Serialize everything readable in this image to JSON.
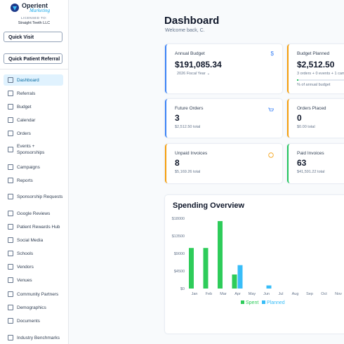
{
  "sidebar": {
    "brand": "Operient",
    "brand_tagline": "Marketing",
    "licensed_label": "LICENSED TO:",
    "licensee": "Straight Teeth LLC",
    "buttons": [
      "Quick Visit",
      "Quick Patient Referral"
    ],
    "nav": [
      "Dashboard",
      "Referrals",
      "Budget",
      "Calendar",
      "Orders",
      "Events + Sponsorships",
      "Campaigns",
      "Reports",
      "Sponsorship Requests",
      "Google Reviews",
      "Patient Rewards Hub",
      "Social Media",
      "Schools",
      "Vendors",
      "Venues",
      "Community Partners",
      "Demographics",
      "Documents",
      "Industry Benchmarks"
    ],
    "active": 0
  },
  "header": {
    "title": "Dashboard",
    "subtitle": "Welcome back, C."
  },
  "cards": [
    {
      "label": "Annual Budget",
      "value": "$191,085.34",
      "note": "2026 Fiscal Year",
      "accent": "#3b82f6",
      "icon_text": "$"
    },
    {
      "label": "Budget Planned",
      "value": "$2,512.50",
      "note": "3 orders + 0 events + 1 cam",
      "progress_label": "% of annual budget",
      "accent": "#f59e0b"
    },
    {
      "label": "Future Orders",
      "value": "3",
      "note": "$2,512.50 total",
      "accent": "#3b82f6",
      "icon": "cart"
    },
    {
      "label": "Orders Placed",
      "value": "0",
      "note": "$0.00 total",
      "accent": "#f59e0b"
    },
    {
      "label": "Unpaid Invoices",
      "value": "8",
      "note": "$5,169.26 total",
      "accent": "#f59e0b",
      "icon": "clock"
    },
    {
      "label": "Paid Invoices",
      "value": "63",
      "note": "$41,591.22 total",
      "accent": "#22c55e"
    }
  ],
  "chart_data": {
    "type": "bar",
    "title": "Spending Overview",
    "categories": [
      "Jan",
      "Feb",
      "Mar",
      "Apr",
      "May",
      "Jun",
      "Jul",
      "Aug",
      "Sep",
      "Oct",
      "Nov"
    ],
    "series": [
      {
        "name": "Spent",
        "color": "#2ecc5a",
        "values": [
          10400,
          10400,
          17300,
          3600,
          0,
          0,
          0,
          0,
          0,
          0,
          0
        ]
      },
      {
        "name": "Planned",
        "color": "#38bdf8",
        "values": [
          0,
          0,
          0,
          6000,
          0,
          800,
          0,
          0,
          0,
          0,
          0
        ]
      }
    ],
    "ylim": [
      0,
      18000
    ],
    "yticks": [
      {
        "value": 0,
        "label": "$0"
      },
      {
        "value": 4500,
        "label": "$4500"
      },
      {
        "value": 9000,
        "label": "$9000"
      },
      {
        "value": 13500,
        "label": "$13500"
      },
      {
        "value": 18000,
        "label": "$18000"
      }
    ],
    "grid": false,
    "legend": "bottom"
  }
}
